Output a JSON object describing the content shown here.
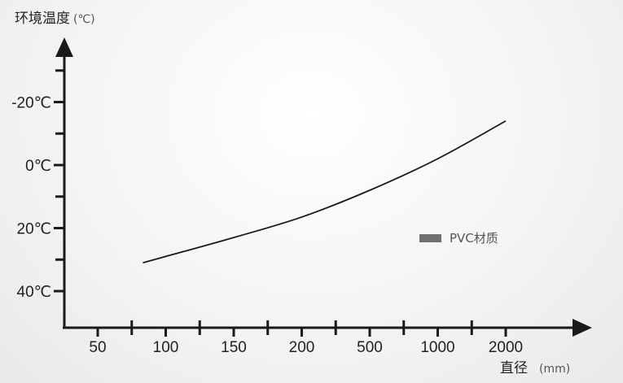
{
  "chart_data": {
    "type": "line",
    "ylabel": "环境温度",
    "ylabel_unit": "(℃)",
    "xlabel": "直径",
    "xlabel_unit": "(mm)",
    "x_ticks": [
      "50",
      "100",
      "150",
      "200",
      "500",
      "1000",
      "2000"
    ],
    "y_ticks": [
      "-20℃",
      "0℃",
      "20℃",
      "40℃"
    ],
    "y_tick_values": [
      -20,
      0,
      20,
      40
    ],
    "y_axis_inverted": true,
    "x_range": [
      "50",
      "2000"
    ],
    "y_range": [
      -40,
      40
    ],
    "legend_position": "right",
    "series": [
      {
        "name": "PVC材质",
        "color": "#707070",
        "points": [
          {
            "x": "100",
            "y": 29
          },
          {
            "x": "150",
            "y": 23
          },
          {
            "x": "200",
            "y": 16.5
          },
          {
            "x": "500",
            "y": 8
          },
          {
            "x": "1000",
            "y": -2
          },
          {
            "x": "2000",
            "y": -14
          }
        ]
      }
    ]
  }
}
